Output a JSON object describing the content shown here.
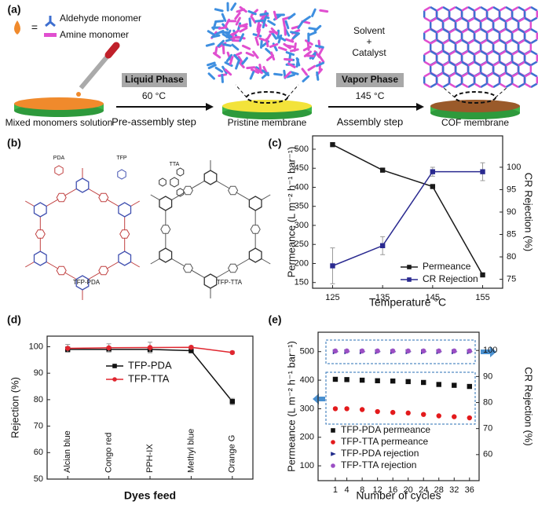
{
  "schematic": {
    "label": "(a)",
    "equals": "=",
    "aldehyde": "Aldehyde monomer",
    "amine": "Amine monomer",
    "step1_box": "Liquid Phase",
    "step1_temp": "60 °C",
    "step1_name": "Pre-assembly step",
    "stage1": "Mixed monomers solution",
    "stage2": "Pristine membrane",
    "solvent": "Solvent",
    "plus": "+",
    "catalyst": "Catalyst",
    "step2_box": "Vapor Phase",
    "step2_temp": "145 °C",
    "step2_name": "Assembly step",
    "stage3": "COF membrane"
  },
  "structures": {
    "label": "(b)",
    "monomers": [
      "PDA",
      "TFP",
      "TTA"
    ],
    "networks": [
      "TFP-PDA",
      "TFP-TTA"
    ]
  },
  "chart_data": [
    {
      "type": "line",
      "label": "(c)",
      "x": [
        125,
        135,
        145,
        155
      ],
      "xlim": [
        121,
        159
      ],
      "xticks": [
        125,
        135,
        145,
        155
      ],
      "xlabel": "Temperature °C",
      "ylabel": "Permeance (L m⁻² h⁻¹ bar⁻¹)",
      "ylim": [
        135,
        535
      ],
      "yticks": [
        150,
        200,
        250,
        300,
        350,
        400,
        450,
        500
      ],
      "y2label": "CR Rejection (%)",
      "y2lim": [
        73,
        107
      ],
      "y2ticks": [
        75,
        80,
        85,
        90,
        95,
        100
      ],
      "series": [
        {
          "name": "Permeance",
          "color": "#1a1a1a",
          "marker": "square",
          "values": [
            512,
            445,
            402,
            170
          ],
          "errors": [
            3,
            3,
            3,
            5
          ]
        },
        {
          "name": "CR Rejection",
          "color": "#2a2a90",
          "marker": "square",
          "axis": "y2",
          "values": [
            78,
            82.5,
            99,
            99
          ],
          "errors": [
            4,
            2,
            1,
            2
          ]
        }
      ]
    },
    {
      "type": "line",
      "label": "(d)",
      "categories": [
        "Alcian blue",
        "Congo red",
        "PPH-IX",
        "Methyl blue",
        "Orange G"
      ],
      "xlabel": "Dyes feed",
      "ylabel": "Rejection (%)",
      "ylim": [
        50,
        104
      ],
      "yticks": [
        50,
        60,
        70,
        80,
        90,
        100
      ],
      "series": [
        {
          "name": "TFP-PDA",
          "color": "#111111",
          "marker": "square",
          "values": [
            99,
            99,
            99,
            98.5,
            79.3
          ],
          "errors": [
            1,
            1,
            1,
            0.5,
            1.2
          ]
        },
        {
          "name": "TFP-TTA",
          "color": "#e0262f",
          "marker": "circle",
          "values": [
            99.4,
            99.6,
            99.7,
            99.8,
            97.8
          ],
          "errors": [
            1.5,
            1.5,
            2,
            0.5,
            0.5
          ]
        }
      ]
    },
    {
      "type": "scatter",
      "label": "(e)",
      "x": [
        1,
        4,
        8,
        12,
        16,
        20,
        24,
        28,
        32,
        36
      ],
      "xlim": [
        -3.5,
        38.5
      ],
      "xticks": [
        1,
        4,
        8,
        12,
        16,
        20,
        24,
        28,
        32,
        36
      ],
      "xlabel": "Number of cycles",
      "ylabel": "Permeance (L m⁻² h⁻¹ bar⁻¹)",
      "ylim": [
        48,
        568
      ],
      "yticks": [
        100,
        200,
        300,
        400,
        500
      ],
      "y2label": "CR Rejection (%)",
      "y2lim": [
        50,
        107
      ],
      "y2ticks": [
        60,
        70,
        80,
        90,
        100
      ],
      "series": [
        {
          "name": "TFP-PDA permeance",
          "color": "#111111",
          "marker": "square",
          "values": [
            403,
            402,
            400,
            398,
            397,
            395,
            392,
            385,
            382,
            378
          ]
        },
        {
          "name": "TFP-TTA permeance",
          "color": "#e31a1c",
          "marker": "circle",
          "values": [
            300,
            300,
            297,
            290,
            287,
            285,
            280,
            275,
            272,
            268
          ]
        },
        {
          "name": "TFP-PDA rejection",
          "color": "#1f2a8a",
          "marker": "triangle",
          "axis": "y2",
          "values": [
            99.5,
            99.5,
            99.5,
            99.5,
            99.5,
            99.5,
            99.5,
            99.5,
            99.5,
            99.5
          ]
        },
        {
          "name": "TFP-TTA rejection",
          "color": "#9b4fc4",
          "marker": "circle",
          "axis": "y2",
          "values": [
            99.8,
            99.8,
            99.8,
            99.8,
            99.8,
            99.8,
            99.8,
            99.8,
            99.8,
            99.8
          ]
        }
      ]
    }
  ]
}
